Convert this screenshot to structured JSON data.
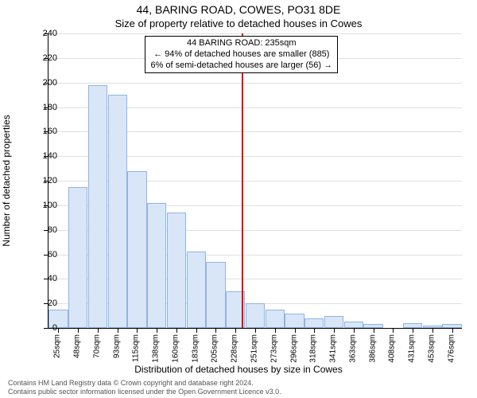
{
  "title_main": "44, BARING ROAD, COWES, PO31 8DE",
  "title_sub": "Size of property relative to detached houses in Cowes",
  "y_axis_title": "Number of detached properties",
  "x_axis_title": "Distribution of detached houses by size in Cowes",
  "chart": {
    "type": "histogram",
    "background_color": "#ffffff",
    "bar_fill": "#d9e6f7",
    "bar_border": "#8fb4e3",
    "grid_color": "#e0e0e0",
    "marker_color": "#d40000",
    "ylim_max": 240,
    "ytick_step": 20,
    "x_labels": [
      "25sqm",
      "48sqm",
      "70sqm",
      "93sqm",
      "115sqm",
      "138sqm",
      "160sqm",
      "183sqm",
      "205sqm",
      "228sqm",
      "251sqm",
      "273sqm",
      "296sqm",
      "318sqm",
      "341sqm",
      "363sqm",
      "386sqm",
      "408sqm",
      "431sqm",
      "453sqm",
      "476sqm"
    ],
    "y_labels": [
      "0",
      "20",
      "40",
      "60",
      "80",
      "100",
      "120",
      "140",
      "160",
      "180",
      "200",
      "220",
      "240"
    ],
    "values": [
      15,
      115,
      198,
      190,
      128,
      102,
      94,
      62,
      54,
      30,
      20,
      15,
      12,
      8,
      10,
      5,
      3,
      0,
      4,
      2,
      3
    ],
    "marker_value_sqm": 235
  },
  "annotation": {
    "line1": "44 BARING ROAD: 235sqm",
    "line2": "← 94% of detached houses are smaller (885)",
    "line3": "6% of semi-detached houses are larger (56) →"
  },
  "footer": {
    "line1": "Contains HM Land Registry data © Crown copyright and database right 2024.",
    "line2": "Contains public sector information licensed under the Open Government Licence v3.0."
  }
}
